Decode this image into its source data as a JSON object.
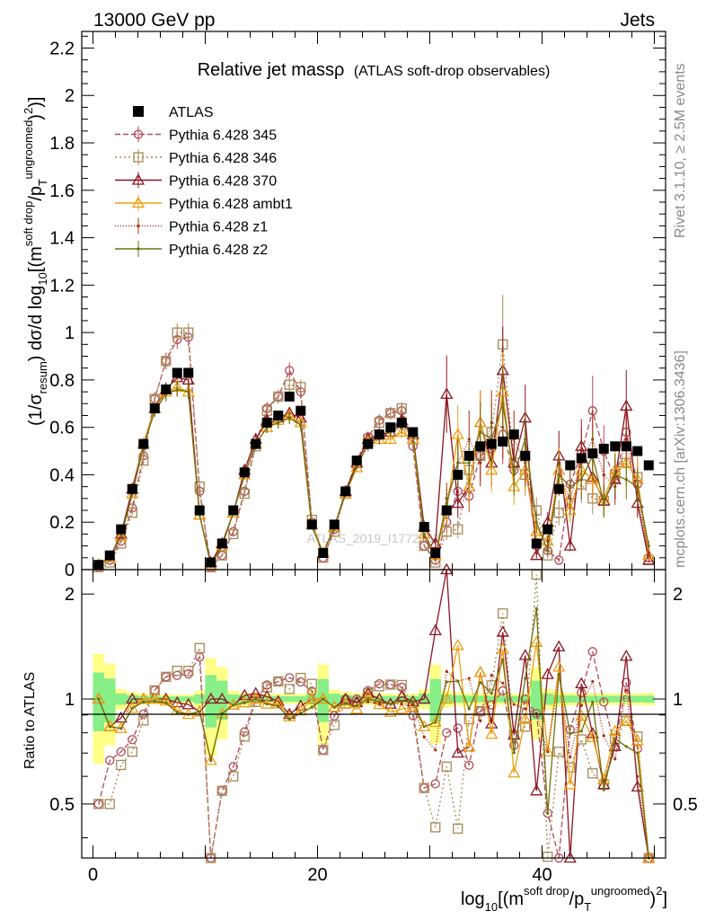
{
  "header": {
    "left": "13000 GeV pp",
    "right": "Jets"
  },
  "side_labels": {
    "rivet": "Rivet 3.1.10, ≥ 2.5M events",
    "mcplots": "mcplots.cern.ch [arXiv:1306.3436]"
  },
  "chart_data": {
    "type": "line",
    "title": "Relative jet massρ",
    "subtitle": "(ATLAS soft-drop observables)",
    "watermark": "ATLAS_2019_I1772062",
    "xlabel": {
      "main": "log",
      "sub": "10",
      "p1": "[(m",
      "sup1": "soft drop",
      "p2": "/p",
      "sub2": "T",
      "sup2": "ungroomed",
      "p3": ")",
      "sup3": "2",
      "p4": "]"
    },
    "ylabel": {
      "p1": "(1/σ",
      "sub1": "resum",
      "p2": ") dσ/d log",
      "sub2": "10",
      "p3": "[(m",
      "sup1": "soft drop",
      "p4": "/p",
      "sub3": "T",
      "sup2": "ungroomed",
      "p5": ")",
      "sup3": "2",
      "p6": ")]"
    },
    "ratio_ylabel": "Ratio to ATLAS",
    "xlim": [
      -1,
      51
    ],
    "ylim": [
      0,
      2.27
    ],
    "ratio_ylim": [
      0.35,
      2.35
    ],
    "xticks": [
      "0",
      "20",
      "40"
    ],
    "yticks": [
      "0",
      "0.2",
      "0.4",
      "0.6",
      "0.8",
      "1",
      "1.2",
      "1.4",
      "1.6",
      "1.8",
      "2",
      "2.2"
    ],
    "ratio_yticks": [
      "0.5",
      "1",
      "2"
    ],
    "legend_position": "top-left",
    "x": [
      0.5,
      1.5,
      2.5,
      3.5,
      4.5,
      5.5,
      6.5,
      7.5,
      8.5,
      9.5,
      10.5,
      11.5,
      12.5,
      13.5,
      14.5,
      15.5,
      16.5,
      17.5,
      18.5,
      19.5,
      20.5,
      21.5,
      22.5,
      23.5,
      24.5,
      25.5,
      26.5,
      27.5,
      28.5,
      29.5,
      30.5,
      31.5,
      32.5,
      33.5,
      34.5,
      35.5,
      36.5,
      37.5,
      38.5,
      39.5,
      40.5,
      41.5,
      42.5,
      43.5,
      44.5,
      45.5,
      46.5,
      47.5,
      48.5,
      49.5
    ],
    "atlas": [
      0.02,
      0.06,
      0.17,
      0.34,
      0.53,
      0.68,
      0.76,
      0.83,
      0.83,
      0.25,
      0.03,
      0.11,
      0.25,
      0.41,
      0.53,
      0.62,
      0.65,
      0.73,
      0.67,
      0.19,
      0.07,
      0.19,
      0.33,
      0.46,
      0.53,
      0.57,
      0.6,
      0.62,
      0.58,
      0.18,
      0.07,
      0.25,
      0.4,
      0.48,
      0.52,
      0.53,
      0.54,
      0.57,
      0.48,
      0.11,
      0.17,
      0.34,
      0.44,
      0.47,
      0.49,
      0.51,
      0.52,
      0.52,
      0.5,
      0.44
    ],
    "series": [
      {
        "name": "Pythia 6.428 345",
        "color": "#b34955",
        "dash": "6,3",
        "marker": "circle",
        "values": [
          0.01,
          0.04,
          0.12,
          0.26,
          0.48,
          0.72,
          0.88,
          0.97,
          0.98,
          0.33,
          0.01,
          0.06,
          0.16,
          0.33,
          0.53,
          0.68,
          0.73,
          0.84,
          0.75,
          0.2,
          0.05,
          0.17,
          0.33,
          0.46,
          0.56,
          0.63,
          0.66,
          0.67,
          0.52,
          0.1,
          0.04,
          0.2,
          0.33,
          0.31,
          0.48,
          0.51,
          0.57,
          0.42,
          0.48,
          0.1,
          0.08,
          0.04,
          0.36,
          0.49,
          0.67,
          0.5,
          0.38,
          0.58,
          0.36,
          0.05
        ]
      },
      {
        "name": "Pythia 6.428 346",
        "color": "#a88856",
        "dash": "2,3",
        "marker": "square",
        "values": [
          0.01,
          0.03,
          0.11,
          0.24,
          0.46,
          0.72,
          0.88,
          1.0,
          1.0,
          0.35,
          0.01,
          0.06,
          0.15,
          0.32,
          0.52,
          0.67,
          0.73,
          0.78,
          0.77,
          0.21,
          0.05,
          0.16,
          0.32,
          0.45,
          0.55,
          0.62,
          0.66,
          0.68,
          0.55,
          0.1,
          0.03,
          0.16,
          0.17,
          0.42,
          0.48,
          0.58,
          0.95,
          0.45,
          0.4,
          0.25,
          0.06,
          0.24,
          0.28,
          0.36,
          0.3,
          0.29,
          0.4,
          0.45,
          0.39,
          0.04
        ]
      },
      {
        "name": "Pythia 6.428 370",
        "color": "#8b1520",
        "dash": "",
        "marker": "triangle",
        "values": [
          0.02,
          0.05,
          0.15,
          0.34,
          0.53,
          0.68,
          0.76,
          0.81,
          0.8,
          0.23,
          0.03,
          0.11,
          0.24,
          0.42,
          0.55,
          0.63,
          0.64,
          0.66,
          0.64,
          0.19,
          0.07,
          0.18,
          0.33,
          0.45,
          0.55,
          0.57,
          0.58,
          0.63,
          0.57,
          0.18,
          0.11,
          0.74,
          0.28,
          0.35,
          0.62,
          0.45,
          0.84,
          0.45,
          0.64,
          0.06,
          0.2,
          0.48,
          0.1,
          0.52,
          0.39,
          0.29,
          0.38,
          0.69,
          0.28,
          0.04
        ]
      },
      {
        "name": "Pythia 6.428 ambt1",
        "color": "#f0a010",
        "dash": "",
        "marker": "triangle",
        "values": [
          0.02,
          0.05,
          0.14,
          0.32,
          0.53,
          0.68,
          0.75,
          0.77,
          0.75,
          0.23,
          0.02,
          0.1,
          0.24,
          0.4,
          0.53,
          0.6,
          0.63,
          0.65,
          0.62,
          0.19,
          0.07,
          0.18,
          0.32,
          0.43,
          0.54,
          0.55,
          0.55,
          0.58,
          0.55,
          0.15,
          0.06,
          0.25,
          0.57,
          0.35,
          0.62,
          0.42,
          0.75,
          0.35,
          0.42,
          0.16,
          0.12,
          0.42,
          0.25,
          0.42,
          0.38,
          0.3,
          0.42,
          0.45,
          0.38,
          0.06
        ]
      },
      {
        "name": "Pythia 6.428 z1",
        "color": "#b02a10",
        "dash": "1,2",
        "marker": "dot",
        "values": [
          0.02,
          0.05,
          0.14,
          0.32,
          0.52,
          0.67,
          0.74,
          0.76,
          0.75,
          0.23,
          0.02,
          0.1,
          0.24,
          0.4,
          0.53,
          0.6,
          0.62,
          0.64,
          0.61,
          0.18,
          0.07,
          0.18,
          0.32,
          0.44,
          0.52,
          0.55,
          0.58,
          0.6,
          0.56,
          0.14,
          0.05,
          0.3,
          0.45,
          0.55,
          0.45,
          0.62,
          0.6,
          0.55,
          0.45,
          0.1,
          0.12,
          0.4,
          0.3,
          0.45,
          0.55,
          0.4,
          0.35,
          0.55,
          0.3,
          0.07
        ]
      },
      {
        "name": "Pythia 6.428 z2",
        "color": "#707010",
        "dash": "",
        "marker": "dot",
        "values": [
          0.02,
          0.05,
          0.14,
          0.32,
          0.52,
          0.67,
          0.74,
          0.76,
          0.75,
          0.23,
          0.02,
          0.1,
          0.24,
          0.4,
          0.53,
          0.6,
          0.62,
          0.64,
          0.61,
          0.18,
          0.07,
          0.18,
          0.32,
          0.44,
          0.53,
          0.56,
          0.58,
          0.61,
          0.57,
          0.15,
          0.06,
          0.28,
          0.45,
          0.45,
          0.58,
          0.55,
          0.7,
          0.4,
          0.55,
          0.2,
          0.08,
          0.4,
          0.35,
          0.38,
          0.48,
          0.28,
          0.4,
          0.38,
          0.35,
          0.1
        ]
      }
    ]
  }
}
